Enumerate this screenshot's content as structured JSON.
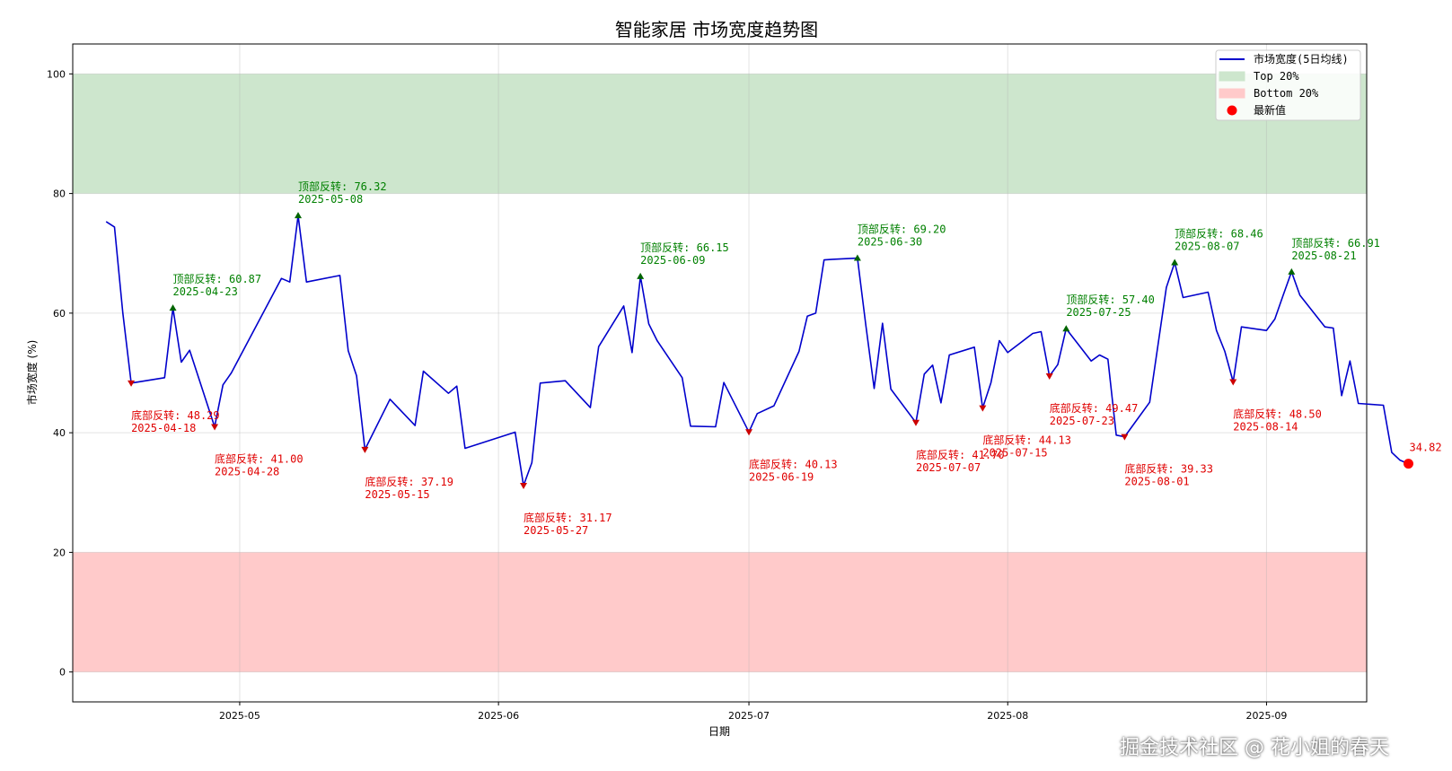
{
  "chart_data": {
    "type": "line",
    "title": "智能家居 市场宽度趋势图",
    "xlabel": "日期",
    "ylabel": "市场宽度 (%)",
    "ylim": [
      -5,
      105
    ],
    "xlim": [
      "2025-04-11",
      "2025-09-13"
    ],
    "yticks": [
      0,
      20,
      40,
      60,
      80,
      100
    ],
    "xticks": [
      {
        "date": "2025-05-01",
        "label": "2025-05"
      },
      {
        "date": "2025-06-01",
        "label": "2025-06"
      },
      {
        "date": "2025-07-01",
        "label": "2025-07"
      },
      {
        "date": "2025-08-01",
        "label": "2025-08"
      },
      {
        "date": "2025-09-01",
        "label": "2025-09"
      }
    ],
    "grid": true,
    "legend_position": "top-right",
    "bands": [
      {
        "name": "Top 20%",
        "from": 80,
        "to": 100,
        "color": "#cde6cd"
      },
      {
        "name": "Bottom 20%",
        "from": 0,
        "to": 20,
        "color": "#ffcaca"
      }
    ],
    "series": [
      {
        "name": "市场宽度(5日均线)",
        "color": "#0000cc",
        "points": [
          [
            "2025-04-15",
            75.3
          ],
          [
            "2025-04-16",
            74.4
          ],
          [
            "2025-04-17",
            60.0
          ],
          [
            "2025-04-18",
            48.3
          ],
          [
            "2025-04-22",
            49.2
          ],
          [
            "2025-04-23",
            60.87
          ],
          [
            "2025-04-24",
            51.8
          ],
          [
            "2025-04-25",
            53.8
          ],
          [
            "2025-04-28",
            41.0
          ],
          [
            "2025-04-29",
            48.0
          ],
          [
            "2025-04-30",
            50.0
          ],
          [
            "2025-05-06",
            65.8
          ],
          [
            "2025-05-07",
            65.2
          ],
          [
            "2025-05-08",
            76.32
          ],
          [
            "2025-05-09",
            65.2
          ],
          [
            "2025-05-13",
            66.3
          ],
          [
            "2025-05-14",
            53.7
          ],
          [
            "2025-05-15",
            49.5
          ],
          [
            "2025-05-16",
            37.19
          ],
          [
            "2025-05-19",
            45.6
          ],
          [
            "2025-05-22",
            41.2
          ],
          [
            "2025-05-23",
            50.3
          ],
          [
            "2025-05-26",
            46.6
          ],
          [
            "2025-05-27",
            47.8
          ],
          [
            "2025-05-28",
            37.4
          ],
          [
            "2025-06-03",
            40.1
          ],
          [
            "2025-06-04",
            31.17
          ],
          [
            "2025-06-05",
            35.0
          ],
          [
            "2025-06-06",
            48.3
          ],
          [
            "2025-06-09",
            48.7
          ],
          [
            "2025-06-12",
            44.2
          ],
          [
            "2025-06-13",
            54.4
          ],
          [
            "2025-06-16",
            61.2
          ],
          [
            "2025-06-17",
            53.4
          ],
          [
            "2025-06-18",
            66.15
          ],
          [
            "2025-06-19",
            58.2
          ],
          [
            "2025-06-20",
            55.4
          ],
          [
            "2025-06-23",
            49.2
          ],
          [
            "2025-06-24",
            41.1
          ],
          [
            "2025-06-27",
            41.0
          ],
          [
            "2025-06-28",
            48.4
          ],
          [
            "2025-07-01",
            40.13
          ],
          [
            "2025-07-02",
            43.2
          ],
          [
            "2025-07-04",
            44.5
          ],
          [
            "2025-07-07",
            53.6
          ],
          [
            "2025-07-08",
            59.5
          ],
          [
            "2025-07-09",
            60.0
          ],
          [
            "2025-07-10",
            68.9
          ],
          [
            "2025-07-11",
            69.0
          ],
          [
            "2025-07-14",
            69.2
          ],
          [
            "2025-07-15",
            58.0
          ],
          [
            "2025-07-16",
            47.4
          ],
          [
            "2025-07-17",
            58.3
          ],
          [
            "2025-07-18",
            47.3
          ],
          [
            "2025-07-21",
            41.7
          ],
          [
            "2025-07-22",
            49.8
          ],
          [
            "2025-07-23",
            51.3
          ],
          [
            "2025-07-24",
            45.0
          ],
          [
            "2025-07-25",
            53.0
          ],
          [
            "2025-07-28",
            54.3
          ],
          [
            "2025-07-29",
            44.13
          ],
          [
            "2025-07-30",
            48.4
          ],
          [
            "2025-07-31",
            55.4
          ],
          [
            "2025-08-01",
            53.4
          ],
          [
            "2025-08-04",
            56.6
          ],
          [
            "2025-08-05",
            56.9
          ],
          [
            "2025-08-06",
            49.47
          ],
          [
            "2025-08-07",
            51.4
          ],
          [
            "2025-08-08",
            57.4
          ],
          [
            "2025-08-11",
            52.0
          ],
          [
            "2025-08-12",
            53.0
          ],
          [
            "2025-08-13",
            52.3
          ],
          [
            "2025-08-14",
            39.6
          ],
          [
            "2025-08-15",
            39.33
          ],
          [
            "2025-08-18",
            45.1
          ],
          [
            "2025-08-20",
            64.3
          ],
          [
            "2025-08-21",
            68.46
          ],
          [
            "2025-08-22",
            62.6
          ],
          [
            "2025-08-25",
            63.5
          ],
          [
            "2025-08-26",
            57.1
          ],
          [
            "2025-08-27",
            53.6
          ],
          [
            "2025-08-28",
            48.5
          ],
          [
            "2025-08-29",
            57.7
          ],
          [
            "2025-09-01",
            57.1
          ],
          [
            "2025-09-02",
            59.0
          ],
          [
            "2025-09-03",
            63.0
          ],
          [
            "2025-09-04",
            66.91
          ],
          [
            "2025-09-05",
            63.0
          ],
          [
            "2025-09-08",
            57.7
          ],
          [
            "2025-09-09",
            57.5
          ],
          [
            "2025-09-10",
            46.2
          ],
          [
            "2025-09-11",
            52.0
          ],
          [
            "2025-09-12",
            44.9
          ],
          [
            "2025-09-15",
            44.6
          ],
          [
            "2025-09-16",
            36.7
          ],
          [
            "2025-09-17",
            35.4
          ],
          [
            "2025-09-18",
            34.82
          ]
        ]
      }
    ],
    "annotations": [
      {
        "kind": "top",
        "date": "2025-04-23",
        "value": 60.87,
        "label": "顶部反转: 60.87",
        "date_label": "2025-04-23"
      },
      {
        "kind": "top",
        "date": "2025-05-08",
        "value": 76.32,
        "label": "顶部反转: 76.32",
        "date_label": "2025-05-08"
      },
      {
        "kind": "top",
        "date": "2025-06-18",
        "value": 66.15,
        "label": "顶部反转: 66.15",
        "date_label": "2025-06-09"
      },
      {
        "kind": "top",
        "date": "2025-07-14",
        "value": 69.2,
        "label": "顶部反转: 69.20",
        "date_label": "2025-06-30"
      },
      {
        "kind": "top",
        "date": "2025-08-08",
        "value": 57.4,
        "label": "顶部反转: 57.40",
        "date_label": "2025-07-25"
      },
      {
        "kind": "top",
        "date": "2025-08-21",
        "value": 68.46,
        "label": "顶部反转: 68.46",
        "date_label": "2025-08-07"
      },
      {
        "kind": "top",
        "date": "2025-09-04",
        "value": 66.91,
        "label": "顶部反转: 66.91",
        "date_label": "2025-08-21"
      },
      {
        "kind": "bottom",
        "date": "2025-04-18",
        "value": 48.29,
        "label": "底部反转: 48.29",
        "date_label": "2025-04-18"
      },
      {
        "kind": "bottom",
        "date": "2025-04-28",
        "value": 41.0,
        "label": "底部反转: 41.00",
        "date_label": "2025-04-28"
      },
      {
        "kind": "bottom",
        "date": "2025-05-16",
        "value": 37.19,
        "label": "底部反转: 37.19",
        "date_label": "2025-05-15"
      },
      {
        "kind": "bottom",
        "date": "2025-06-04",
        "value": 31.17,
        "label": "底部反转: 31.17",
        "date_label": "2025-05-27"
      },
      {
        "kind": "bottom",
        "date": "2025-07-01",
        "value": 40.13,
        "label": "底部反转: 40.13",
        "date_label": "2025-06-19"
      },
      {
        "kind": "bottom",
        "date": "2025-07-21",
        "value": 41.7,
        "label": "底部反转: 41.70",
        "date_label": "2025-07-07"
      },
      {
        "kind": "bottom",
        "date": "2025-07-29",
        "value": 44.13,
        "label": "底部反转: 44.13",
        "date_label": "2025-07-15"
      },
      {
        "kind": "bottom",
        "date": "2025-08-06",
        "value": 49.47,
        "label": "底部反转: 49.47",
        "date_label": "2025-07-23"
      },
      {
        "kind": "bottom",
        "date": "2025-08-15",
        "value": 39.33,
        "label": "底部反转: 39.33",
        "date_label": "2025-08-01"
      },
      {
        "kind": "bottom",
        "date": "2025-08-28",
        "value": 48.5,
        "label": "底部反转: 48.50",
        "date_label": "2025-08-14"
      }
    ],
    "latest": {
      "date": "2025-09-18",
      "value": 34.82,
      "label": "34.82",
      "name": "最新值",
      "color": "#ff0000"
    },
    "legend": [
      {
        "label": "市场宽度(5日均线)",
        "kind": "line",
        "color": "#0000cc"
      },
      {
        "label": "Top 20%",
        "kind": "patch",
        "color": "#cde6cd"
      },
      {
        "label": "Bottom 20%",
        "kind": "patch",
        "color": "#ffcaca"
      },
      {
        "label": "最新值",
        "kind": "dot",
        "color": "#ff0000"
      }
    ],
    "colors": {
      "top_marker": "#006400",
      "top_text": "#008000",
      "bottom_marker": "#cc0000",
      "bottom_text": "#e00000"
    }
  },
  "watermark": "掘金技术社区 @ 花小姐的春天"
}
